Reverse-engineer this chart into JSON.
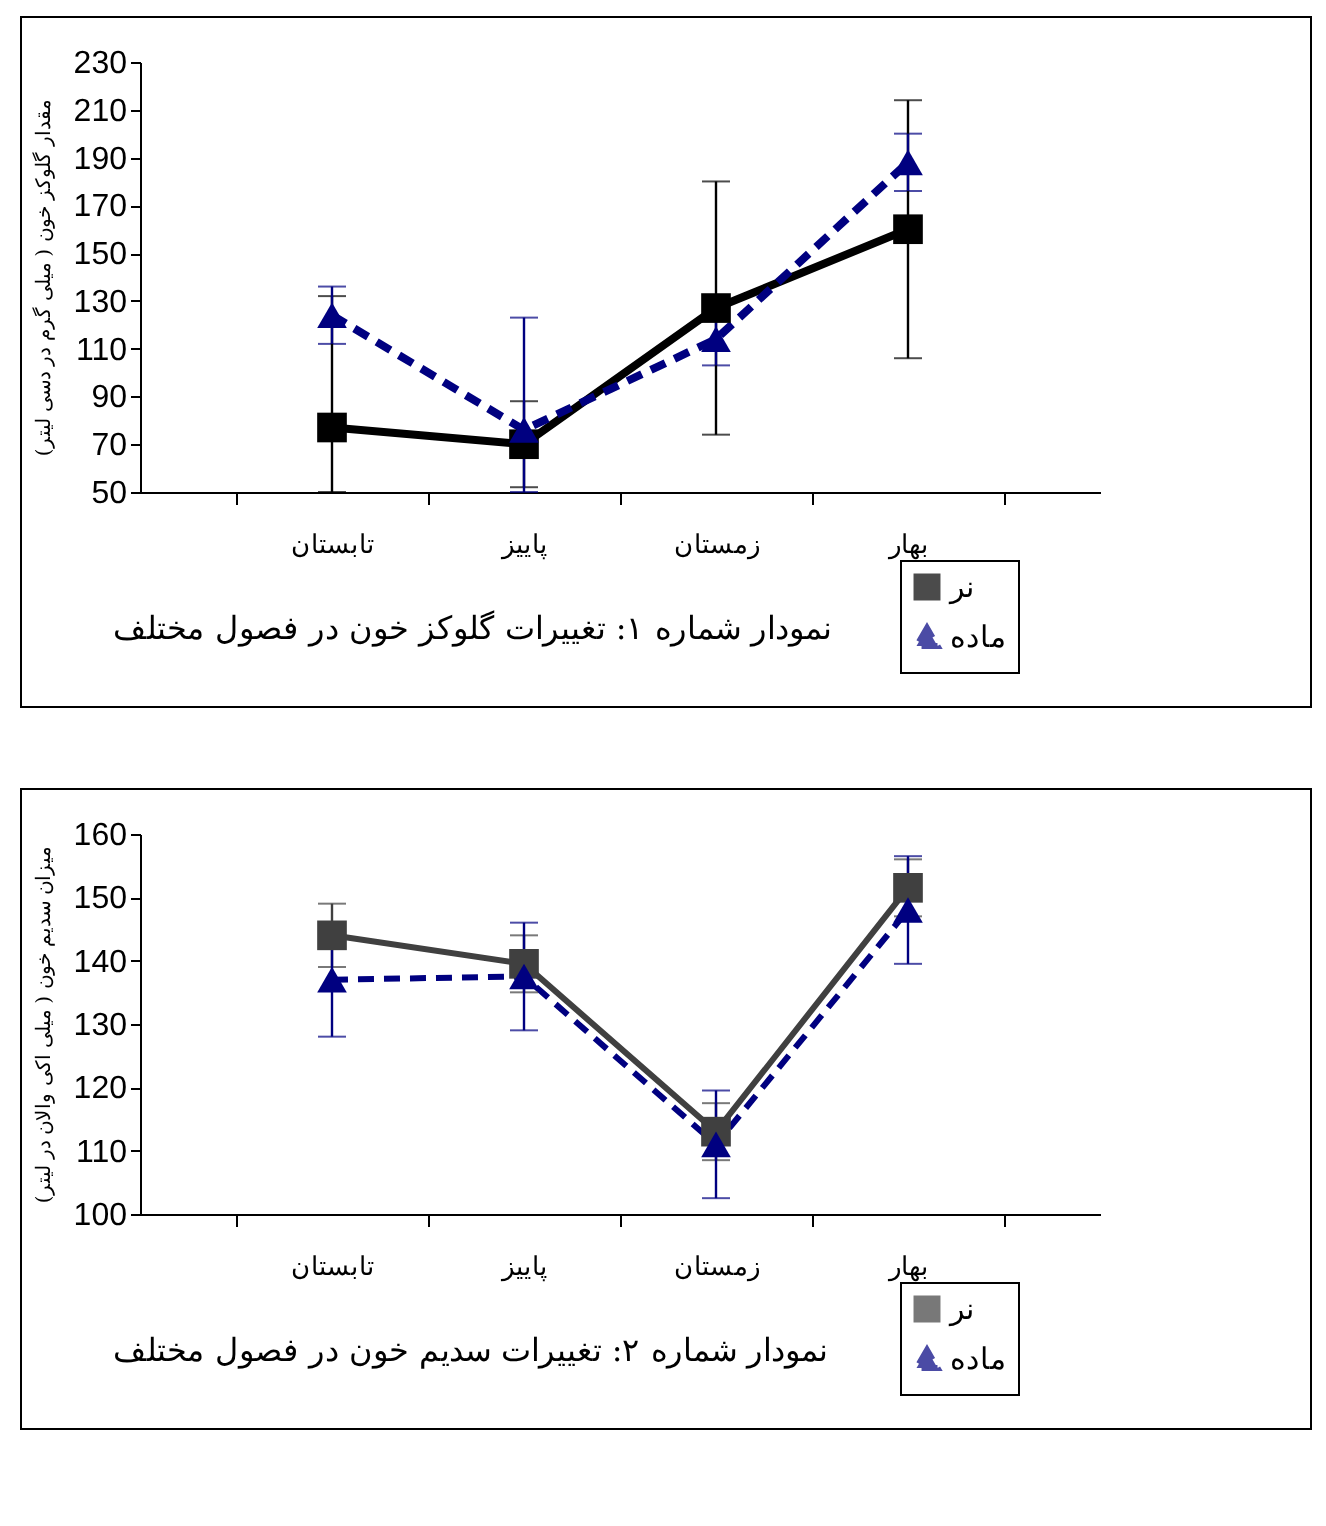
{
  "chart_data": [
    {
      "type": "line",
      "title": "نمودار شماره ۱: تغییرات گلوکز خون در فصول مختلف",
      "ylabel": "مقدار گلوکز خون ( میلی گرم در دسی لیتر)",
      "categories": [
        "تابستان",
        "پاییز",
        "زمستان",
        "بهار"
      ],
      "ylim": [
        50,
        230
      ],
      "yticks": [
        50,
        70,
        90,
        110,
        130,
        150,
        170,
        190,
        210,
        230
      ],
      "legend": "bottom right",
      "series": [
        {
          "name": "نر",
          "color": "#000000",
          "values": [
            77,
            70,
            127,
            160
          ],
          "errors": [
            [
              50,
              132
            ],
            18,
            53,
            54
          ],
          "marker": "square",
          "line_style": "solid"
        },
        {
          "name": "ماده",
          "color": "#000080",
          "values": [
            124,
            76,
            114,
            188
          ],
          "errors": [
            12,
            [
              50,
              123
            ],
            11,
            12
          ],
          "marker": "triangle",
          "line_style": "dashed"
        }
      ]
    },
    {
      "type": "line",
      "title": "نمودار شماره ۲:  تغییرات سدیم خون در فصول مختلف",
      "ylabel": "میزان سدیم خون ( میلی اکی والان در لیتر)",
      "categories": [
        "تابستان",
        "پاییز",
        "زمستان",
        "بهار"
      ],
      "ylim": [
        100,
        160
      ],
      "yticks": [
        100,
        110,
        120,
        130,
        140,
        150,
        160
      ],
      "legend": "bottom right",
      "series": [
        {
          "name": "نر",
          "color": "#404040",
          "values": [
            144,
            139.5,
            113,
            151.5
          ],
          "errors": [
            5,
            4.5,
            4.5,
            4.5
          ],
          "marker": "square",
          "line_style": "solid"
        },
        {
          "name": "ماده",
          "color": "#000080",
          "values": [
            137,
            137.5,
            111,
            148
          ],
          "errors": [
            9,
            8.5,
            8.5,
            8.5
          ],
          "marker": "triangle",
          "line_style": "dashed"
        }
      ]
    }
  ]
}
